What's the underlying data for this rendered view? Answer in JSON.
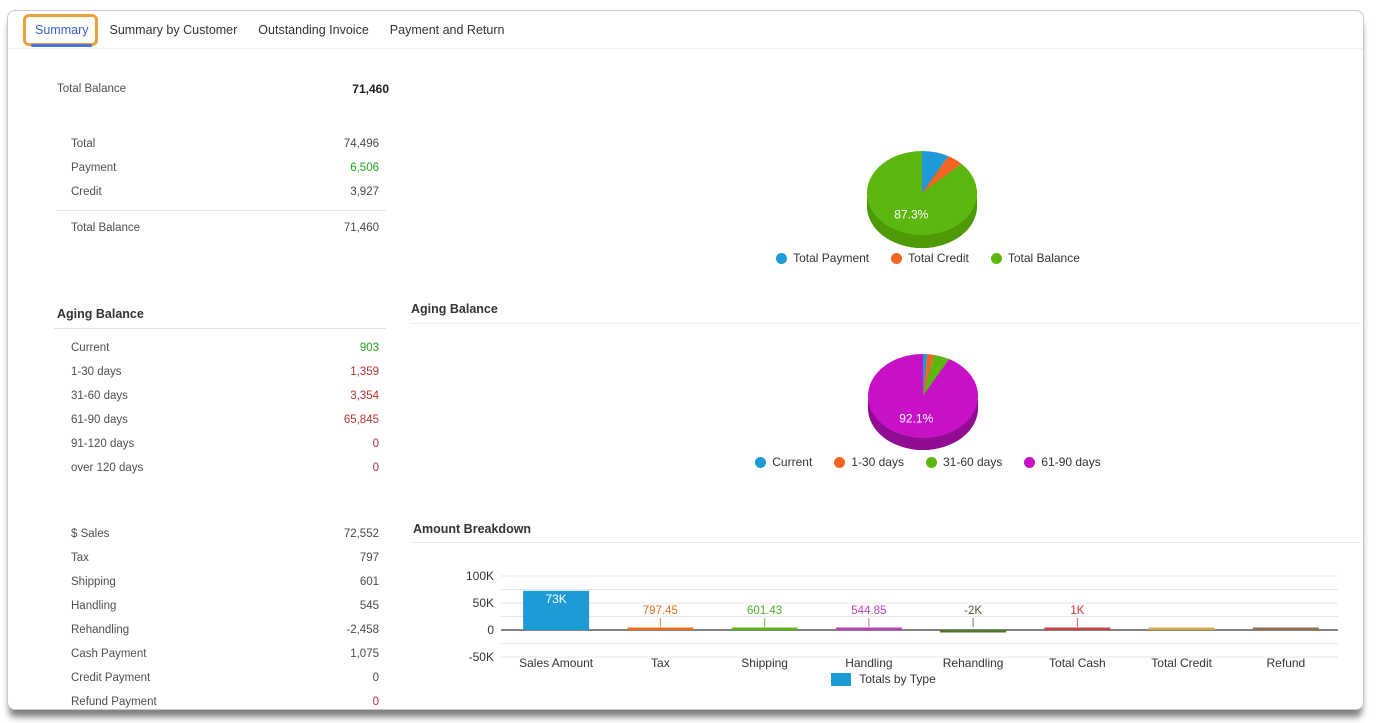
{
  "tabs": [
    {
      "label": "Summary",
      "active": true
    },
    {
      "label": "Summary by Customer",
      "active": false
    },
    {
      "label": "Outstanding Invoice",
      "active": false
    },
    {
      "label": "Payment and Return",
      "active": false
    }
  ],
  "colors": {
    "positive_value": "#1FA41F",
    "negative_value": "#B4342E",
    "active_tab_blue": "#3A5FC8",
    "tab_underline_blue": "#4A72D8",
    "annotation_orange": "#E9A23C"
  },
  "top_summary": {
    "label": "Total Balance",
    "value": "71,460"
  },
  "balance_rows": [
    {
      "label": "Total",
      "value": "74,496",
      "color": ""
    },
    {
      "label": "Payment",
      "value": "6,506",
      "color": "green"
    },
    {
      "label": "Credit",
      "value": "3,927",
      "color": ""
    }
  ],
  "balance_total": {
    "label": "Total Balance",
    "value": "71,460"
  },
  "aging": {
    "title": "Aging Balance",
    "rows": [
      {
        "label": "Current",
        "value": "903",
        "color": "green"
      },
      {
        "label": "1-30 days",
        "value": "1,359",
        "color": "red"
      },
      {
        "label": "31-60 days",
        "value": "3,354",
        "color": "red"
      },
      {
        "label": "61-90 days",
        "value": "65,845",
        "color": "red"
      },
      {
        "label": "91-120 days",
        "value": "0",
        "color": "red"
      },
      {
        "label": "over 120 days",
        "value": "0",
        "color": "red"
      }
    ]
  },
  "amounts_rows": [
    {
      "label": "$ Sales",
      "value": "72,552",
      "color": ""
    },
    {
      "label": "Tax",
      "value": "797",
      "color": ""
    },
    {
      "label": "Shipping",
      "value": "601",
      "color": ""
    },
    {
      "label": "Handling",
      "value": "545",
      "color": ""
    },
    {
      "label": "Rehandling",
      "value": "-2,458",
      "color": ""
    },
    {
      "label": "Cash Payment",
      "value": "1,075",
      "color": ""
    },
    {
      "label": "Credit Payment",
      "value": "0",
      "color": ""
    },
    {
      "label": "Refund Payment",
      "value": "0",
      "color": "red"
    }
  ],
  "chart_data": [
    {
      "type": "pie",
      "name": "balance-pie",
      "legend_position": "bottom",
      "slices": [
        {
          "label": "Total Payment",
          "value": 6506,
          "color": "#1E9BD7"
        },
        {
          "label": "Total Credit",
          "value": 3927,
          "color": "#F26522"
        },
        {
          "label": "Total Balance",
          "value": 71460,
          "color": "#5CB811",
          "data_label": "87.3%"
        }
      ],
      "depth_color": "#4E9A06"
    },
    {
      "type": "pie",
      "name": "aging-pie",
      "title": "Aging Balance",
      "legend_position": "bottom",
      "slices": [
        {
          "label": "Current",
          "value": 903,
          "color": "#1E9BD7"
        },
        {
          "label": "1-30 days",
          "value": 1359,
          "color": "#F26522"
        },
        {
          "label": "31-60 days",
          "value": 3354,
          "color": "#5CB811"
        },
        {
          "label": "61-90 days",
          "value": 65845,
          "color": "#C711C7",
          "data_label": "92.1%"
        }
      ],
      "depth_color": "#900D93"
    },
    {
      "type": "bar",
      "name": "amount-breakdown",
      "title": "Amount Breakdown",
      "legend": "Totals by Type",
      "legend_color": "#1E9BD7",
      "ylim": [
        -50000,
        100000
      ],
      "grid": true,
      "yticks": [
        {
          "label": "100K",
          "v": 100000
        },
        {
          "label": "50K",
          "v": 50000
        },
        {
          "label": "0",
          "v": 0
        },
        {
          "label": "-50K",
          "v": -50000
        }
      ],
      "categories": [
        "Sales Amount",
        "Tax",
        "Shipping",
        "Handling",
        "Rehandling",
        "Total Cash",
        "Total Credit",
        "Refund"
      ],
      "values": [
        72552,
        797.45,
        601.43,
        544.85,
        -2458,
        1075,
        3927,
        0
      ],
      "bar_colors": [
        "#1E9BD7",
        "#ED6E1E",
        "#5CB811",
        "#BA3FBC",
        "#4E7A27",
        "#C2434B",
        "#D3A94F",
        "#8F7050"
      ],
      "data_labels": [
        "73K",
        "797.45",
        "601.43",
        "544.85",
        "-2K",
        "1K",
        "",
        ""
      ],
      "data_label_colors": [
        "#FFFFFF",
        "#E2711D",
        "#4CAE29",
        "#BA3FBC",
        "#57564A",
        "#D02F35",
        "",
        ""
      ],
      "data_label_inside": [
        true,
        false,
        false,
        false,
        false,
        false,
        false,
        false
      ]
    }
  ]
}
